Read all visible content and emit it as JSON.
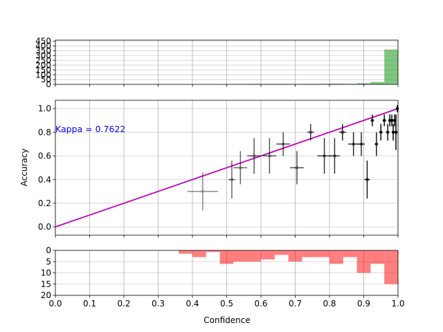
{
  "chart_data": [
    {
      "type": "bar",
      "panel": "top-histogram",
      "color": "#2ca02c",
      "bins": [
        {
          "x0": 0.48,
          "x1": 0.52,
          "count": 3
        },
        {
          "x0": 0.52,
          "x1": 0.56,
          "count": 4
        },
        {
          "x0": 0.56,
          "x1": 0.6,
          "count": 5
        },
        {
          "x0": 0.6,
          "x1": 0.64,
          "count": 5
        },
        {
          "x0": 0.64,
          "x1": 0.68,
          "count": 5
        },
        {
          "x0": 0.68,
          "x1": 0.72,
          "count": 4
        },
        {
          "x0": 0.72,
          "x1": 0.76,
          "count": 5
        },
        {
          "x0": 0.76,
          "x1": 0.8,
          "count": 6
        },
        {
          "x0": 0.8,
          "x1": 0.84,
          "count": 8
        },
        {
          "x0": 0.84,
          "x1": 0.88,
          "count": 6
        },
        {
          "x0": 0.88,
          "x1": 0.92,
          "count": 12
        },
        {
          "x0": 0.92,
          "x1": 0.96,
          "count": 25
        },
        {
          "x0": 0.96,
          "x1": 1.0,
          "count": 362
        }
      ],
      "yticks": [
        "0",
        "50",
        "100",
        "150",
        "200",
        "250",
        "300",
        "350",
        "400",
        "450"
      ],
      "ylim": [
        0,
        460
      ],
      "xlim": [
        0,
        1
      ],
      "grid": true
    },
    {
      "type": "scatter",
      "panel": "reliability",
      "ylabel": "Accuracy",
      "annotation": "Kappa = 0.7622",
      "annotation_color": "#0000ff",
      "diagonal_color": "#bf00bf",
      "point_color": "#000000",
      "xlim": [
        0,
        1
      ],
      "ylim": [
        -0.07,
        1.07
      ],
      "yticks": [
        "0.0",
        "0.2",
        "0.4",
        "0.6",
        "0.8",
        "1.0"
      ],
      "grid": true,
      "points": [
        {
          "x": 0.43,
          "y": 0.3,
          "xerr": 0.045,
          "yerr": 0.16,
          "alpha": 0.45
        },
        {
          "x": 0.515,
          "y": 0.4,
          "xerr": 0.01,
          "yerr": 0.16,
          "alpha": 0.6
        },
        {
          "x": 0.54,
          "y": 0.5,
          "xerr": 0.02,
          "yerr": 0.14,
          "alpha": 0.6
        },
        {
          "x": 0.58,
          "y": 0.6,
          "xerr": 0.02,
          "yerr": 0.15,
          "alpha": 0.65
        },
        {
          "x": 0.625,
          "y": 0.6,
          "xerr": 0.02,
          "yerr": 0.15,
          "alpha": 0.65
        },
        {
          "x": 0.665,
          "y": 0.7,
          "xerr": 0.02,
          "yerr": 0.1,
          "alpha": 0.7
        },
        {
          "x": 0.705,
          "y": 0.5,
          "xerr": 0.02,
          "yerr": 0.14,
          "alpha": 0.7
        },
        {
          "x": 0.745,
          "y": 0.8,
          "xerr": 0.01,
          "yerr": 0.07,
          "alpha": 0.75
        },
        {
          "x": 0.785,
          "y": 0.6,
          "xerr": 0.02,
          "yerr": 0.15,
          "alpha": 0.8
        },
        {
          "x": 0.815,
          "y": 0.6,
          "xerr": 0.015,
          "yerr": 0.15,
          "alpha": 0.8
        },
        {
          "x": 0.838,
          "y": 0.8,
          "xerr": 0.01,
          "yerr": 0.07,
          "alpha": 0.85
        },
        {
          "x": 0.87,
          "y": 0.7,
          "xerr": 0.015,
          "yerr": 0.1,
          "alpha": 0.85
        },
        {
          "x": 0.893,
          "y": 0.7,
          "xerr": 0.01,
          "yerr": 0.1,
          "alpha": 0.85
        },
        {
          "x": 0.91,
          "y": 0.4,
          "xerr": 0.008,
          "yerr": 0.16,
          "alpha": 0.9
        },
        {
          "x": 0.925,
          "y": 0.9,
          "xerr": 0.005,
          "yerr": 0.05,
          "alpha": 0.9
        },
        {
          "x": 0.937,
          "y": 0.7,
          "xerr": 0.005,
          "yerr": 0.1,
          "alpha": 0.9
        },
        {
          "x": 0.95,
          "y": 0.8,
          "xerr": 0.005,
          "yerr": 0.07,
          "alpha": 0.95
        },
        {
          "x": 0.96,
          "y": 0.9,
          "xerr": 0.005,
          "yerr": 0.05,
          "alpha": 0.95
        },
        {
          "x": 0.97,
          "y": 0.8,
          "xerr": 0.005,
          "yerr": 0.07,
          "alpha": 0.95
        },
        {
          "x": 0.976,
          "y": 0.9,
          "xerr": 0.004,
          "yerr": 0.05,
          "alpha": 1
        },
        {
          "x": 0.982,
          "y": 0.9,
          "xerr": 0.004,
          "yerr": 0.05,
          "alpha": 1
        },
        {
          "x": 0.986,
          "y": 0.8,
          "xerr": 0.003,
          "yerr": 0.07,
          "alpha": 1
        },
        {
          "x": 0.99,
          "y": 0.9,
          "xerr": 0.003,
          "yerr": 0.05,
          "alpha": 1
        },
        {
          "x": 0.994,
          "y": 0.8,
          "xerr": 0.002,
          "yerr": 0.15,
          "alpha": 1
        },
        {
          "x": 0.998,
          "y": 1.0,
          "xerr": 0.002,
          "yerr": 0.03,
          "alpha": 1
        }
      ]
    },
    {
      "type": "bar",
      "panel": "bottom-histogram",
      "color": "#ff0000",
      "xlabel": "Confidence",
      "xticks": [
        "0.0",
        "0.1",
        "0.2",
        "0.3",
        "0.4",
        "0.5",
        "0.6",
        "0.7",
        "0.8",
        "0.9",
        "1.0"
      ],
      "yticks": [
        "0",
        "5",
        "10",
        "15",
        "20"
      ],
      "ylim": [
        0,
        20
      ],
      "inverted_y": true,
      "grid": true,
      "bins": [
        {
          "x0": 0.36,
          "x1": 0.4,
          "count": 1.5
        },
        {
          "x0": 0.4,
          "x1": 0.44,
          "count": 3
        },
        {
          "x0": 0.44,
          "x1": 0.48,
          "count": 0.7
        },
        {
          "x0": 0.48,
          "x1": 0.52,
          "count": 6
        },
        {
          "x0": 0.52,
          "x1": 0.6,
          "count": 5
        },
        {
          "x0": 0.6,
          "x1": 0.64,
          "count": 4
        },
        {
          "x0": 0.64,
          "x1": 0.68,
          "count": 2
        },
        {
          "x0": 0.68,
          "x1": 0.72,
          "count": 5
        },
        {
          "x0": 0.72,
          "x1": 0.8,
          "count": 3
        },
        {
          "x0": 0.8,
          "x1": 0.84,
          "count": 6
        },
        {
          "x0": 0.84,
          "x1": 0.88,
          "count": 3
        },
        {
          "x0": 0.88,
          "x1": 0.92,
          "count": 10
        },
        {
          "x0": 0.92,
          "x1": 0.96,
          "count": 6
        },
        {
          "x0": 0.96,
          "x1": 1.0,
          "count": 15
        }
      ]
    }
  ]
}
